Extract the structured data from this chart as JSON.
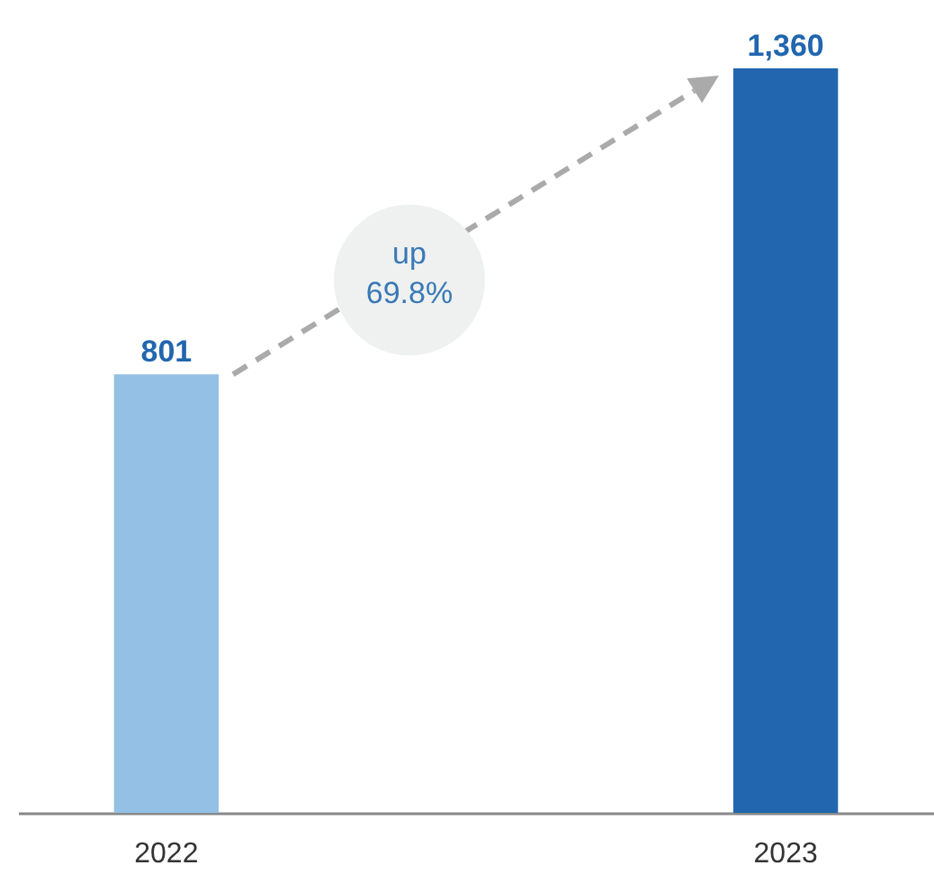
{
  "chart_data": {
    "type": "bar",
    "categories": [
      "2022",
      "2023"
    ],
    "values": [
      801,
      1360
    ],
    "colors": [
      "#93c0e4",
      "#2166ae"
    ],
    "data_labels": true,
    "value_labels": [
      "801",
      "1,360"
    ],
    "annotations": [
      "up 69.8%"
    ],
    "tick_labels": "x"
  }
}
